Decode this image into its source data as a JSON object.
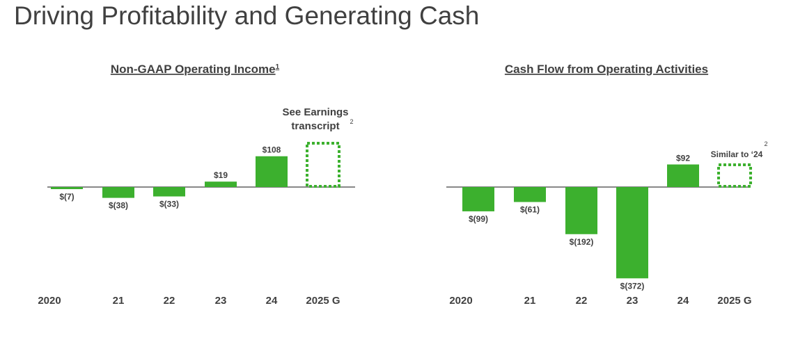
{
  "page": {
    "title": "Driving Profitability and Generating Cash"
  },
  "colors": {
    "bar": "#3cb02e",
    "axis": "#404040",
    "text": "#404040"
  },
  "chart_data": [
    {
      "type": "bar",
      "title": "Non-GAAP Operating Income",
      "title_footnote": "1",
      "categories": [
        "2020",
        "21",
        "22",
        "23",
        "24",
        "2025 G"
      ],
      "values": [
        -7,
        -38,
        -33,
        19,
        108,
        null
      ],
      "value_labels": [
        "$(7)",
        "$(38)",
        "$(33)",
        "$19",
        "$108",
        ""
      ],
      "guidance": {
        "category": "2025 G",
        "style": "dotted-outline",
        "note_lines": [
          "See Earnings",
          "transcript"
        ],
        "footnote": "2"
      },
      "ylim": [
        -60,
        150
      ]
    },
    {
      "type": "bar",
      "title": "Cash Flow from Operating Activities",
      "categories": [
        "2020",
        "21",
        "22",
        "23",
        "24",
        "2025 G"
      ],
      "values": [
        -99,
        -61,
        -192,
        -372,
        92,
        null
      ],
      "value_labels": [
        "$(99)",
        "$(61)",
        "$(192)",
        "$(372)",
        "$92",
        ""
      ],
      "guidance": {
        "category": "2025 G",
        "style": "dotted-outline",
        "note_lines": [
          "Similar to ‘24"
        ],
        "footnote": "2"
      },
      "ylim": [
        -380,
        95
      ]
    }
  ]
}
